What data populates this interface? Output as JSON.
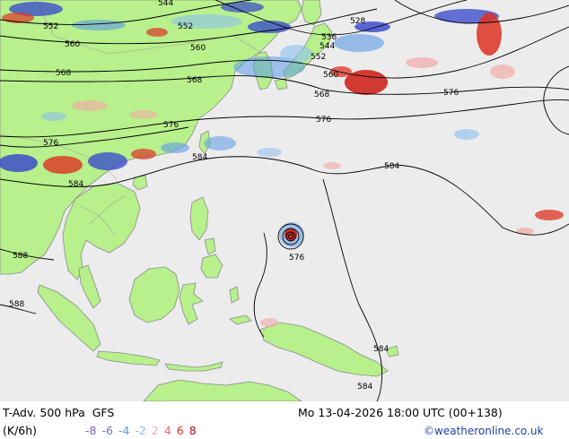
{
  "header": {
    "product": "T-Adv. 500 hPa",
    "model": "GFS",
    "unit": "(K/6h)",
    "validity": "Mo 13-04-2026 18:00 UTC (00+138)",
    "credit": "©weatheronline.co.uk"
  },
  "legend": {
    "values": [
      {
        "label": "-8",
        "color": "#7b5cc8"
      },
      {
        "label": "-6",
        "color": "#6a78d8"
      },
      {
        "label": "-4",
        "color": "#5a9ae6"
      },
      {
        "label": "-2",
        "color": "#8cc0ee"
      },
      {
        "label": "2",
        "color": "#f4a8a8"
      },
      {
        "label": "4",
        "color": "#ee6a5a"
      },
      {
        "label": "6",
        "color": "#dd3322"
      },
      {
        "label": "8",
        "color": "#b01010"
      }
    ]
  },
  "contours": {
    "labels": [
      "544",
      "552",
      "528",
      "536",
      "552",
      "544",
      "560",
      "560",
      "552",
      "568",
      "568",
      "560",
      "568",
      "576",
      "576",
      "576",
      "576",
      "584",
      "584",
      "584",
      "588",
      "588",
      "576",
      "584",
      "584"
    ]
  },
  "colors": {
    "land": "#b8f08c",
    "sea": "#ececec",
    "coast": "#8a8a8a",
    "border": "#a4a4a4",
    "contour": "#000000"
  }
}
